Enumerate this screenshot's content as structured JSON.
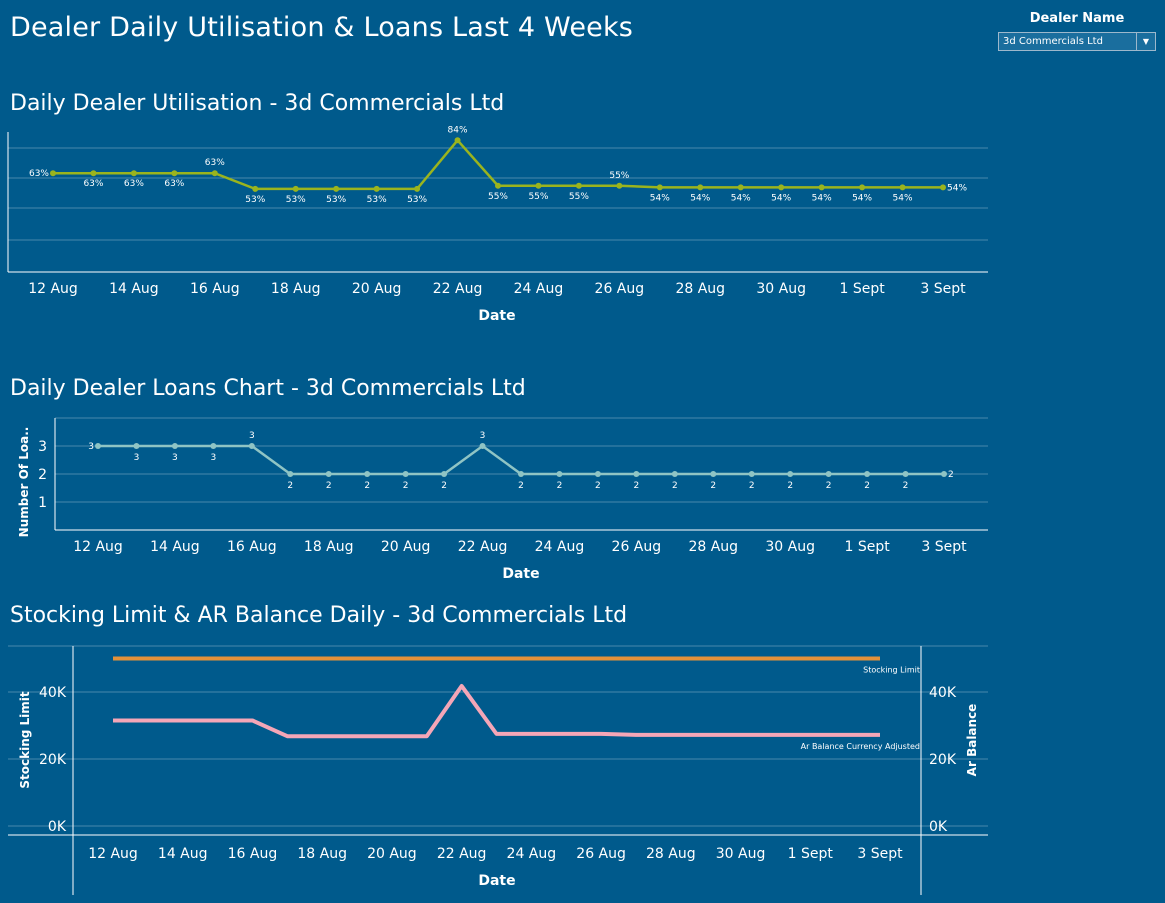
{
  "dashboard": {
    "title": "Dealer Daily Utilisation & Loans Last 4 Weeks",
    "filter": {
      "label": "Dealer Name",
      "value": "3d Commercials Ltd"
    }
  },
  "colors": {
    "background": "#005A8C",
    "utilisation_line": "#9AB41E",
    "loans_line": "#8FC4C4",
    "stocking_limit_line": "#E3913A",
    "ar_balance_line": "#F4A6B7"
  },
  "chart_data": [
    {
      "type": "line",
      "title": "Daily Dealer Utilisation - 3d Commercials Ltd",
      "xlabel": "Date",
      "ylabel": "",
      "x": [
        "12 Aug",
        "13 Aug",
        "14 Aug",
        "15 Aug",
        "16 Aug",
        "17 Aug",
        "18 Aug",
        "19 Aug",
        "20 Aug",
        "21 Aug",
        "22 Aug",
        "23 Aug",
        "24 Aug",
        "25 Aug",
        "26 Aug",
        "27 Aug",
        "28 Aug",
        "29 Aug",
        "30 Aug",
        "31 Aug",
        "1 Sept",
        "2 Sept",
        "3 Sept"
      ],
      "x_ticks": [
        "12 Aug",
        "14 Aug",
        "16 Aug",
        "18 Aug",
        "20 Aug",
        "22 Aug",
        "24 Aug",
        "26 Aug",
        "28 Aug",
        "30 Aug",
        "1 Sept",
        "3 Sept"
      ],
      "series": [
        {
          "values": [
            63,
            63,
            63,
            63,
            63,
            53,
            53,
            53,
            53,
            53,
            84,
            55,
            55,
            55,
            55,
            54,
            54,
            54,
            54,
            54,
            54,
            54,
            54
          ]
        }
      ],
      "data_labels": [
        "63%",
        "63%",
        "63%",
        "63%",
        "63%",
        "53%",
        "53%",
        "53%",
        "53%",
        "53%",
        "84%",
        "55%",
        "55%",
        "55%",
        "55%",
        "54%",
        "54%",
        "54%",
        "54%",
        "54%",
        "54%",
        "54%",
        "54%"
      ],
      "ylim": [
        0,
        88
      ],
      "grid": true
    },
    {
      "type": "line",
      "title": "Daily Dealer Loans Chart - 3d Commercials Ltd",
      "xlabel": "Date",
      "ylabel": "Number Of Loa..",
      "x": [
        "12 Aug",
        "13 Aug",
        "14 Aug",
        "15 Aug",
        "16 Aug",
        "17 Aug",
        "18 Aug",
        "19 Aug",
        "20 Aug",
        "21 Aug",
        "22 Aug",
        "23 Aug",
        "24 Aug",
        "25 Aug",
        "26 Aug",
        "27 Aug",
        "28 Aug",
        "29 Aug",
        "30 Aug",
        "31 Aug",
        "1 Sept",
        "2 Sept",
        "3 Sept"
      ],
      "x_ticks": [
        "12 Aug",
        "14 Aug",
        "16 Aug",
        "18 Aug",
        "20 Aug",
        "22 Aug",
        "24 Aug",
        "26 Aug",
        "28 Aug",
        "30 Aug",
        "1 Sept",
        "3 Sept"
      ],
      "y_ticks": [
        "1",
        "2",
        "3"
      ],
      "series": [
        {
          "values": [
            3,
            3,
            3,
            3,
            3,
            2,
            2,
            2,
            2,
            2,
            3,
            2,
            2,
            2,
            2,
            2,
            2,
            2,
            2,
            2,
            2,
            2,
            2
          ]
        }
      ],
      "data_labels": [
        "3",
        "3",
        "3",
        "3",
        "3",
        "2",
        "2",
        "2",
        "2",
        "2",
        "3",
        "2",
        "2",
        "2",
        "2",
        "2",
        "2",
        "2",
        "2",
        "2",
        "2",
        "2",
        "2"
      ],
      "ylim": [
        0,
        4
      ],
      "grid": true
    },
    {
      "type": "line",
      "title": "Stocking Limit & AR Balance Daily - 3d Commercials Ltd",
      "xlabel": "Date",
      "ylabel": "Stocking Limit",
      "ylabel_right": "Ar Balance",
      "x": [
        "12 Aug",
        "13 Aug",
        "14 Aug",
        "15 Aug",
        "16 Aug",
        "17 Aug",
        "18 Aug",
        "19 Aug",
        "20 Aug",
        "21 Aug",
        "22 Aug",
        "23 Aug",
        "24 Aug",
        "25 Aug",
        "26 Aug",
        "27 Aug",
        "28 Aug",
        "29 Aug",
        "30 Aug",
        "31 Aug",
        "1 Sept",
        "2 Sept",
        "3 Sept"
      ],
      "x_ticks": [
        "12 Aug",
        "14 Aug",
        "16 Aug",
        "18 Aug",
        "20 Aug",
        "22 Aug",
        "24 Aug",
        "26 Aug",
        "28 Aug",
        "30 Aug",
        "1 Sept",
        "3 Sept"
      ],
      "y_ticks": [
        "0K",
        "20K",
        "40K"
      ],
      "y_ticks_right": [
        "0K",
        "20K",
        "40K"
      ],
      "series": [
        {
          "name": "Stocking Limit",
          "values": [
            50000,
            50000,
            50000,
            50000,
            50000,
            50000,
            50000,
            50000,
            50000,
            50000,
            50000,
            50000,
            50000,
            50000,
            50000,
            50000,
            50000,
            50000,
            50000,
            50000,
            50000,
            50000,
            50000
          ]
        },
        {
          "name": "Ar Balance Currency Adjusted",
          "values": [
            31500,
            31500,
            31500,
            31500,
            31500,
            26800,
            26800,
            26800,
            26800,
            26800,
            41800,
            27500,
            27500,
            27500,
            27500,
            27200,
            27200,
            27200,
            27200,
            27200,
            27200,
            27200,
            27200
          ]
        }
      ],
      "ylim": [
        0,
        52000
      ],
      "grid": true
    }
  ]
}
